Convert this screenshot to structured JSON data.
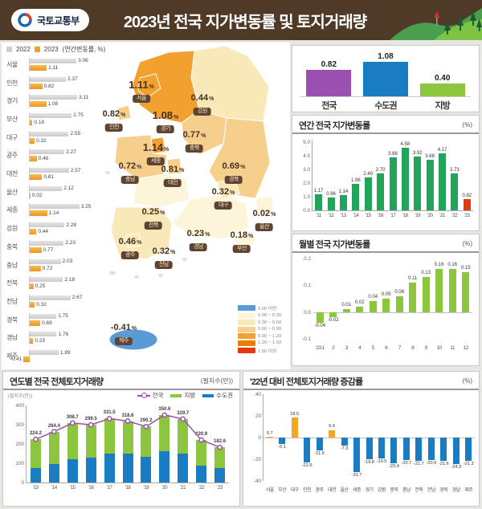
{
  "header": {
    "agency": "국토교통부",
    "title": "2023년 전국 지가변동률 및 토지거래량"
  },
  "top_legend": {
    "items": [
      {
        "label": "2022",
        "color": "#d9d9d9"
      },
      {
        "label": "2023",
        "color": "#f0a030"
      }
    ],
    "unit": "(연간변동률, %)"
  },
  "map": {
    "regions": [
      {
        "name": "서울",
        "value": "1.11"
      },
      {
        "name": "인천",
        "value": "0.82"
      },
      {
        "name": "경기",
        "value": "1.08"
      },
      {
        "name": "강원",
        "value": "0.44"
      },
      {
        "name": "충북",
        "value": "0.77"
      },
      {
        "name": "세종",
        "value": "1.14"
      },
      {
        "name": "충남",
        "value": "0.72"
      },
      {
        "name": "대전",
        "value": "0.81"
      },
      {
        "name": "경북",
        "value": "0.69"
      },
      {
        "name": "대구",
        "value": "0.32"
      },
      {
        "name": "울산",
        "value": "0.02"
      },
      {
        "name": "전북",
        "value": "0.25"
      },
      {
        "name": "경남",
        "value": "0.23"
      },
      {
        "name": "부산",
        "value": "0.18"
      },
      {
        "name": "광주",
        "value": "0.46"
      },
      {
        "name": "전남",
        "value": "0.32"
      },
      {
        "name": "제주",
        "value": "-0.41"
      }
    ],
    "legend": [
      {
        "color": "#5b9bd5",
        "label": "0.00 미만"
      },
      {
        "color": "#fdf5da",
        "label": "0.00 ~ 0.30"
      },
      {
        "color": "#f9e8b8",
        "label": "0.30 ~ 0.60"
      },
      {
        "color": "#f6cf8d",
        "label": "0.60 ~ 0.90"
      },
      {
        "color": "#f2a02e",
        "label": "0.90 ~ 1.20"
      },
      {
        "color": "#ea7c00",
        "label": "1.20 ~ 1.50"
      },
      {
        "color": "#e8380d",
        "label": "1.50 이상"
      }
    ]
  },
  "chart_data": [
    {
      "id": "region_compare",
      "type": "bar",
      "orientation": "horizontal",
      "unit": "(연간변동률, %)",
      "categories": [
        "서울",
        "인천",
        "경기",
        "부산",
        "대구",
        "광주",
        "대전",
        "울산",
        "세종",
        "강원",
        "충북",
        "충남",
        "전북",
        "전남",
        "경북",
        "경남",
        "제주"
      ],
      "series": [
        {
          "name": "2022",
          "color": "#d9d9d9",
          "values": [
            3.06,
            2.37,
            3.11,
            2.75,
            2.55,
            2.27,
            2.57,
            2.12,
            3.25,
            2.28,
            2.23,
            2.03,
            2.18,
            2.67,
            1.75,
            1.76,
            1.89
          ]
        },
        {
          "name": "2023",
          "color": "#f0a030",
          "values": [
            1.11,
            0.82,
            1.08,
            0.18,
            0.32,
            0.46,
            0.81,
            0.02,
            1.14,
            0.44,
            0.77,
            0.72,
            0.25,
            0.32,
            0.69,
            0.23,
            -0.41
          ]
        }
      ]
    },
    {
      "id": "summary",
      "type": "bar",
      "categories": [
        "전국",
        "수도권",
        "지방"
      ],
      "values": [
        0.82,
        1.08,
        0.4
      ],
      "colors": [
        "#9b4fb0",
        "#1a7dc4",
        "#8cc63e"
      ]
    },
    {
      "id": "annual",
      "type": "bar",
      "title": "연간 전국 지가변동률",
      "unit": "(%)",
      "categories": [
        "'11",
        "'12",
        "'13",
        "'14",
        "'15",
        "'16",
        "'17",
        "'18",
        "'19",
        "'20",
        "'21",
        "'22",
        "'23"
      ],
      "values": [
        1.17,
        0.96,
        1.14,
        1.96,
        2.4,
        2.7,
        3.88,
        4.58,
        3.92,
        3.68,
        4.17,
        2.73,
        0.82
      ],
      "ylim": [
        0,
        5
      ],
      "yticks": [
        0.0,
        1.0,
        2.0,
        3.0,
        4.0,
        5.0
      ],
      "bar_color": "#23a45b",
      "highlight_last_color": "#e8380d"
    },
    {
      "id": "monthly",
      "type": "bar",
      "title": "월별 전국 지가변동률",
      "unit": "(%)",
      "categories": [
        "'23.1",
        "2",
        "3",
        "4",
        "5",
        "6",
        "7",
        "8",
        "9",
        "10",
        "11",
        "12"
      ],
      "values": [
        -0.04,
        -0.02,
        0.01,
        0.02,
        0.04,
        0.05,
        0.06,
        0.11,
        0.13,
        0.16,
        0.16,
        0.15
      ],
      "ylim": [
        -0.1,
        0.2
      ],
      "yticks": [
        0.2,
        0.1,
        0.0,
        -0.1
      ],
      "bar_color": "#8cc63e"
    },
    {
      "id": "yearly_volume",
      "type": "bar+line",
      "title": "연도별 전국 전체토지거래량",
      "unit": "(필지수(만))",
      "axis_label": "(필지수(만))",
      "categories": [
        "'13",
        "'14",
        "'15",
        "'16",
        "'17",
        "'18",
        "'19",
        "'20",
        "'21",
        "'22",
        "'23"
      ],
      "series": [
        {
          "name": "전국",
          "type": "line",
          "color": "#9b4fb0",
          "values": [
            224.2,
            264.4,
            308.7,
            299.5,
            331.5,
            318.6,
            290.2,
            350.6,
            329.7,
            220.9,
            182.6
          ]
        },
        {
          "name": "지방",
          "type": "bar",
          "color": "#8cc63e",
          "values": [
            149.2,
            169.4,
            188.7,
            171.5,
            182.5,
            167.6,
            156.2,
            187.6,
            181.7,
            131.9,
            106.6
          ]
        },
        {
          "name": "수도권",
          "type": "bar",
          "color": "#1a7dc4",
          "values": [
            75,
            95,
            120,
            128,
            149,
            151,
            134,
            163,
            148,
            89,
            76
          ]
        }
      ],
      "ylim": [
        0,
        400
      ],
      "yticks": [
        0,
        100,
        200,
        300,
        400
      ]
    },
    {
      "id": "volume_change",
      "type": "bar",
      "title": "'22년 대비 전체토지거래량 증감률",
      "unit": "(%)",
      "categories": [
        "서울",
        "부산",
        "대구",
        "인천",
        "광주",
        "대전",
        "울산",
        "세종",
        "경기",
        "강원",
        "충북",
        "충남",
        "전북",
        "전남",
        "경북",
        "경남",
        "제주"
      ],
      "values": [
        0.7,
        -6.1,
        18.5,
        -22.9,
        -11.9,
        6.9,
        -7.3,
        -31.7,
        -19.8,
        -19.5,
        -23.4,
        -20.7,
        -21.7,
        -20.9,
        -21.6,
        -24.3,
        -21.3
      ],
      "ylim": [
        -40,
        40
      ],
      "yticks": [
        40,
        20,
        0,
        -20,
        -40
      ],
      "positive_color": "#f5a623",
      "negative_color": "#1a7dc4"
    }
  ]
}
